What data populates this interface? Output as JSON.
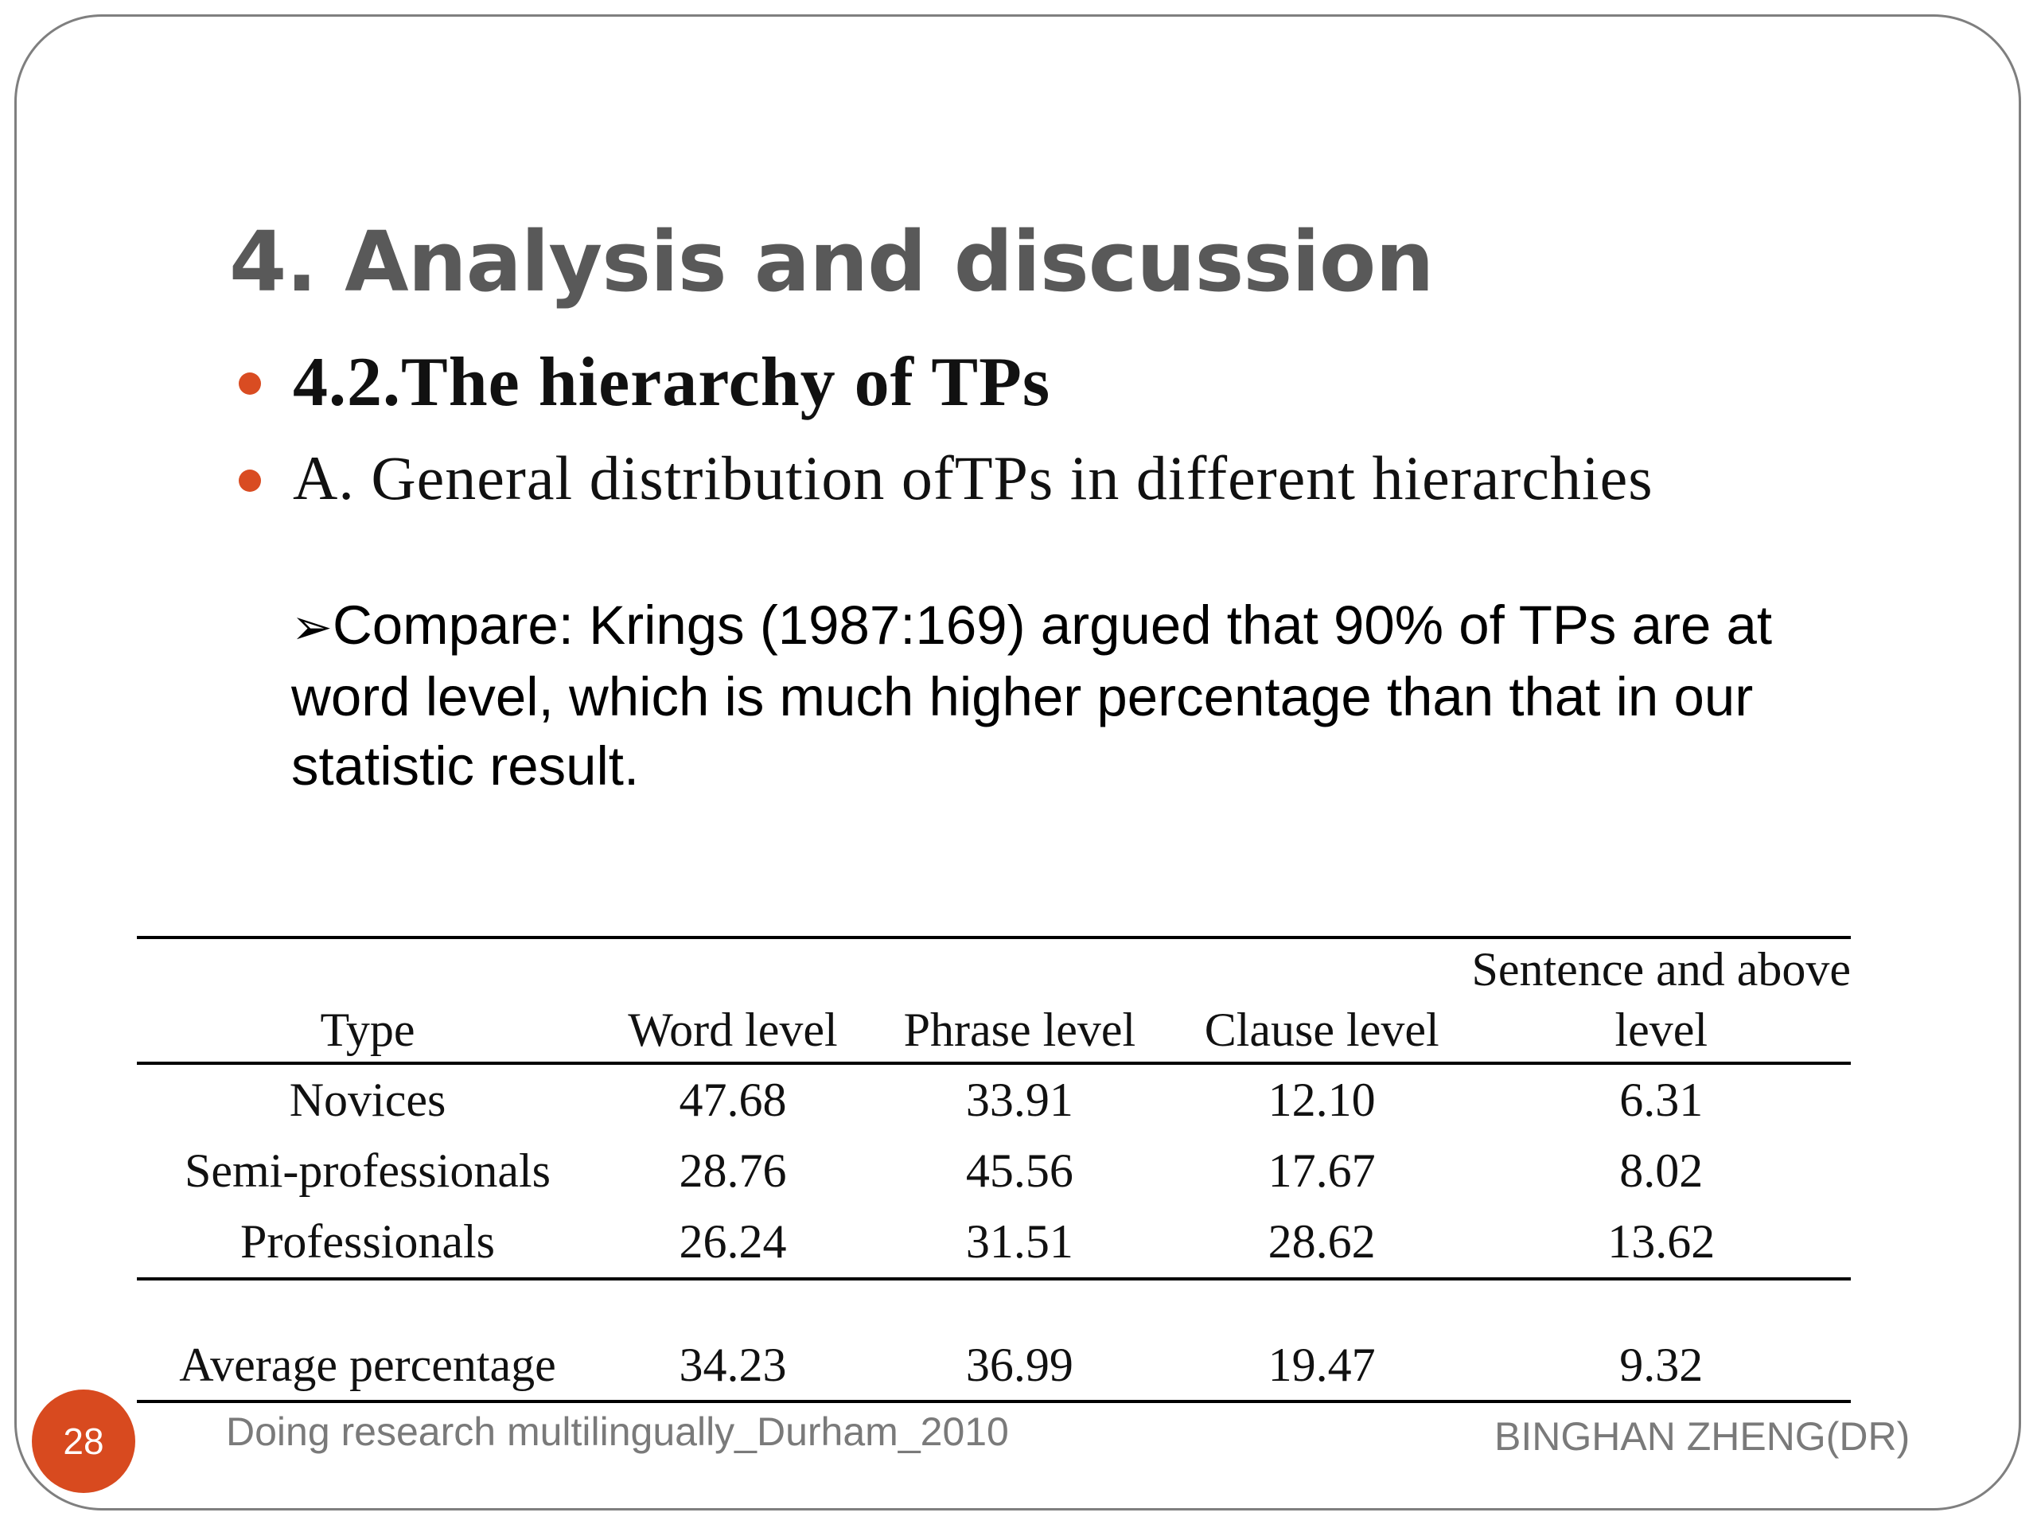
{
  "slide": {
    "title": "4. Analysis and discussion",
    "bullets": [
      "4.2.The hierarchy of TPs",
      "A. General distribution ofTPs in different hierarchies"
    ],
    "note": {
      "marker": "➢",
      "text": "Compare: Krings (1987:169) argued that 90% of TPs are at word level, which is much higher percentage than that in our statistic result."
    }
  },
  "table": {
    "headers": {
      "type": "Type",
      "word": "Word level",
      "phrase": "Phrase level",
      "clause": "Clause level",
      "sentence_line1": "Sentence and above",
      "sentence_line2": "level"
    },
    "rows": [
      {
        "type": "Novices",
        "word": "47.68",
        "phrase": "33.91",
        "clause": "12.10",
        "sentence": "6.31"
      },
      {
        "type": "Semi-professionals",
        "word": "28.76",
        "phrase": "45.56",
        "clause": "17.67",
        "sentence": "8.02"
      },
      {
        "type": "Professionals",
        "word": "26.24",
        "phrase": "31.51",
        "clause": "28.62",
        "sentence": "13.62"
      }
    ],
    "average": {
      "type": "Average percentage",
      "word": "34.23",
      "phrase": "36.99",
      "clause": "19.47",
      "sentence": "9.32"
    }
  },
  "footer": {
    "page_number": "28",
    "left": "Doing research multilingually_Durham_2010",
    "right": "BINGHAN ZHENG(DR)"
  },
  "colors": {
    "accent": "#d94c22",
    "title": "#595959",
    "footer_text": "#7a7a7a",
    "frame": "#7f7f7f"
  }
}
